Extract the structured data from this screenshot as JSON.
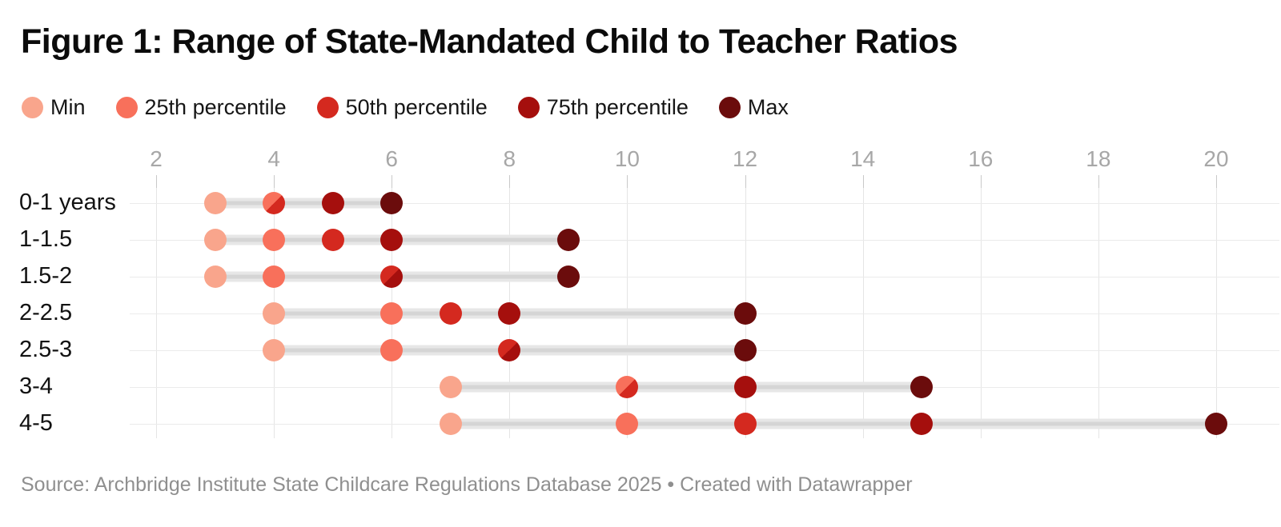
{
  "header": {
    "title": "Figure 1: Range of State-Mandated Child to Teacher Ratios"
  },
  "legend": {
    "items": [
      {
        "label": "Min",
        "color": "#F9A58C"
      },
      {
        "label": "25th percentile",
        "color": "#F8705B"
      },
      {
        "label": "50th percentile",
        "color": "#D4291F"
      },
      {
        "label": "75th percentile",
        "color": "#A50F0D"
      },
      {
        "label": "Max",
        "color": "#6B0C0C"
      }
    ]
  },
  "chart_data": {
    "type": "scatter",
    "subtype": "dot-range-plot",
    "title": "Figure 1: Range of State-Mandated Child to Teacher Ratios",
    "categories": [
      "0-1 years",
      "1-1.5",
      "1.5-2",
      "2-2.5",
      "2.5-3",
      "3-4",
      "4-5"
    ],
    "x_axis": {
      "position": "top",
      "min": 2,
      "max": 20,
      "ticks": [
        2,
        4,
        6,
        8,
        10,
        12,
        14,
        16,
        18,
        20
      ]
    },
    "series": [
      {
        "name": "Min",
        "color": "#F9A58C",
        "values": [
          3,
          3,
          3,
          4,
          4,
          7,
          7
        ]
      },
      {
        "name": "25th percentile",
        "color": "#F8705B",
        "values": [
          4,
          4,
          4,
          6,
          6,
          10,
          10
        ]
      },
      {
        "name": "50th percentile",
        "color": "#D4291F",
        "values": [
          4,
          5,
          6,
          7,
          8,
          10,
          12
        ]
      },
      {
        "name": "75th percentile",
        "color": "#A50F0D",
        "values": [
          5,
          6,
          6,
          8,
          8,
          12,
          15
        ]
      },
      {
        "name": "Max",
        "color": "#6B0C0C",
        "values": [
          6,
          9,
          9,
          12,
          12,
          15,
          20
        ]
      }
    ],
    "range_bar_color": "#E7E7E7",
    "grid": true,
    "legend_position": "top",
    "xlabel": "",
    "ylabel": ""
  },
  "footer": {
    "source": "Source: Archbridge Institute State Childcare Regulations Database 2025 • Created with Datawrapper"
  }
}
